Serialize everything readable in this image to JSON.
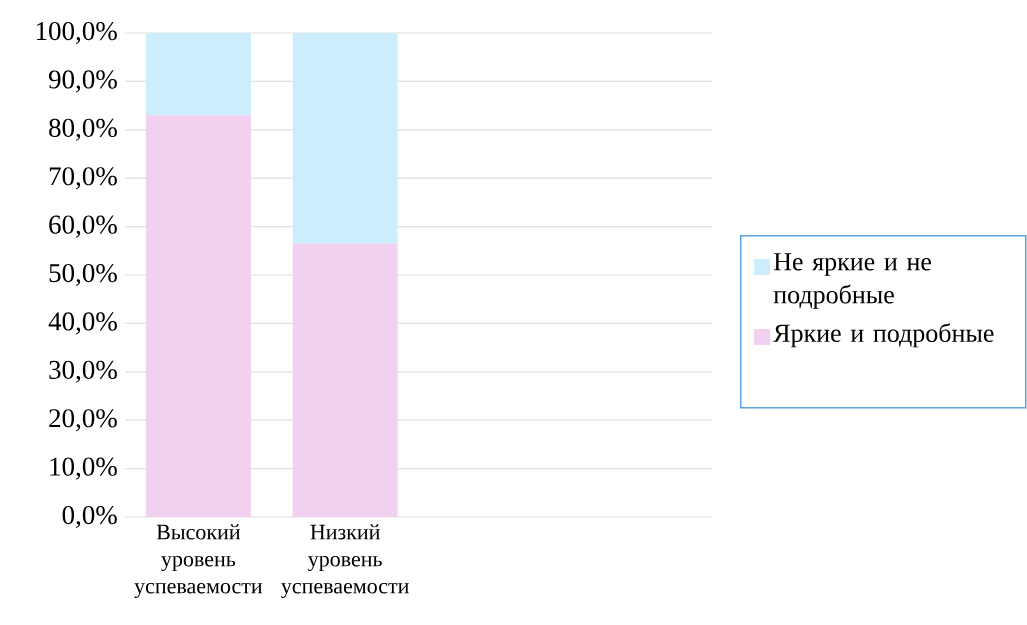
{
  "chart_data": {
    "type": "bar",
    "stacked": true,
    "categories": [
      "Высокий уровень успеваемости",
      "Низкий уровень успеваемости"
    ],
    "series": [
      {
        "name": "Яркие и подробные",
        "color": "#f2d1f0",
        "values": [
          83,
          56.5
        ]
      },
      {
        "name": "Не яркие и не подробные",
        "color": "#cdedfc",
        "values": [
          17,
          43.5
        ]
      }
    ],
    "ylim": [
      0,
      100
    ],
    "yticks": [
      {
        "value": 0,
        "label": "0,0%"
      },
      {
        "value": 10,
        "label": "10,0%"
      },
      {
        "value": 20,
        "label": "20,0%"
      },
      {
        "value": 30,
        "label": "30,0%"
      },
      {
        "value": 40,
        "label": "40,0%"
      },
      {
        "value": 50,
        "label": "50,0%"
      },
      {
        "value": 60,
        "label": "60,0%"
      },
      {
        "value": 70,
        "label": "70,0%"
      },
      {
        "value": 80,
        "label": "80,0%"
      },
      {
        "value": 90,
        "label": "90,0%"
      },
      {
        "value": 100,
        "label": "100,0%"
      }
    ],
    "grid": "y",
    "legend": "right"
  }
}
